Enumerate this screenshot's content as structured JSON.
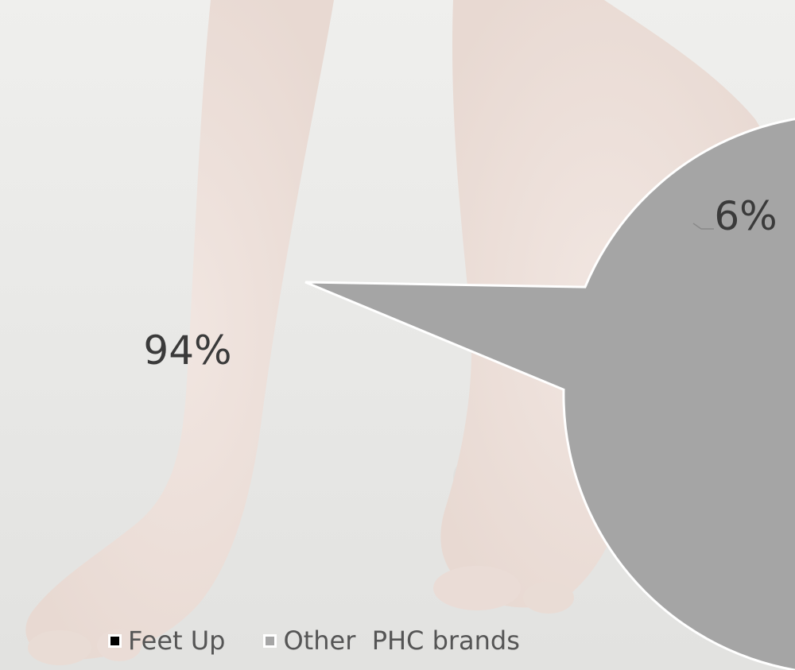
{
  "chart_data": {
    "type": "pie",
    "title": "",
    "slices": [
      {
        "name": "Feet Up",
        "value": 6,
        "label": "6%",
        "color": "#000000",
        "exploded": true
      },
      {
        "name": "Other  PHC brands",
        "value": 94,
        "label": "94%",
        "color": "#a5a5a5",
        "exploded": false
      }
    ],
    "legend_position": "bottom"
  },
  "background": {
    "description_icon": "feet-photo",
    "color": "#ececea"
  }
}
